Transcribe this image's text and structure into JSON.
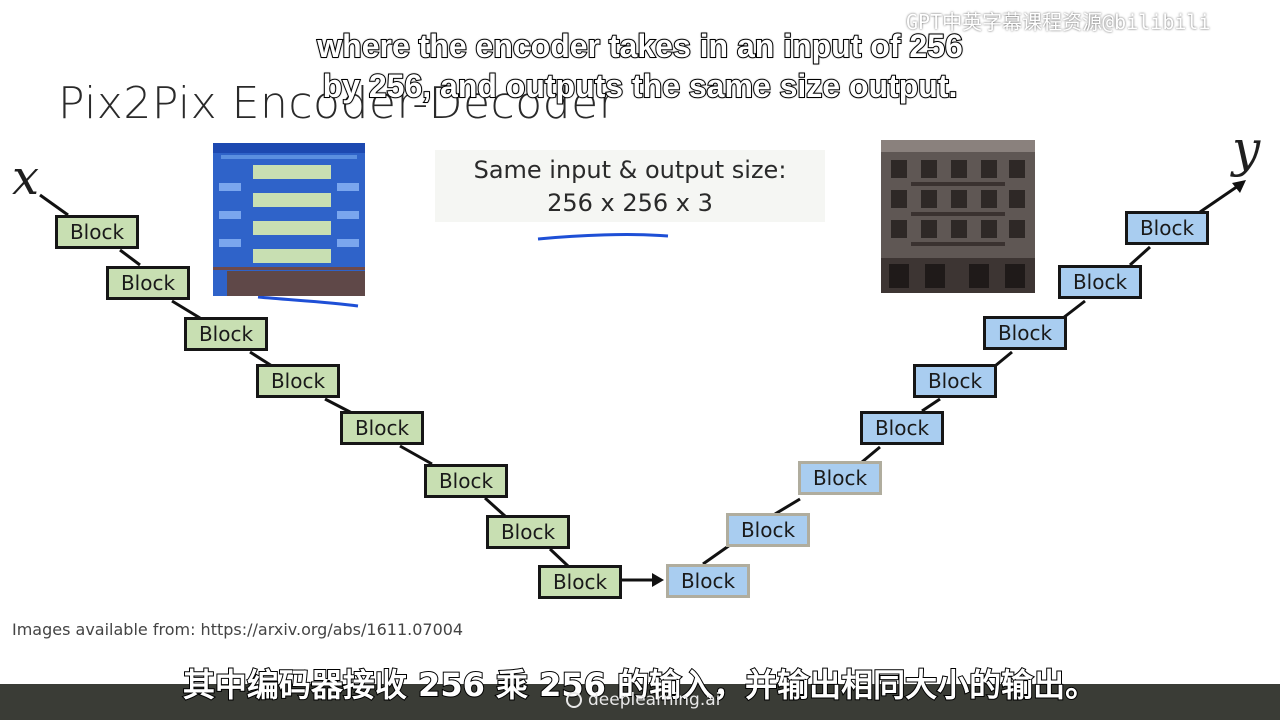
{
  "slide": {
    "title": "Pix2Pix Encoder-Decoder",
    "x_label": "x",
    "y_label": "y",
    "note_line1": "Same input & output size:",
    "note_line2": "256 x 256 x 3",
    "source": "Images available from: https://arxiv.org/abs/1611.07004"
  },
  "encoder_blocks": [
    "Block",
    "Block",
    "Block",
    "Block",
    "Block",
    "Block",
    "Block",
    "Block"
  ],
  "decoder_blocks": [
    "Block",
    "Block",
    "Block",
    "Block",
    "Block",
    "Block",
    "Block",
    "Block"
  ],
  "subtitles": {
    "en_line1": "where the encoder takes in an input of 256",
    "en_line2": "by 256, and outputs the same size output.",
    "zh": "其中编码器接收 256 乘 256 的输入，并输出相同大小的输出。"
  },
  "watermark": "GPT中英字幕课程资源@bilibili",
  "branding": {
    "logo_text": "deeplearning.ai"
  },
  "colors": {
    "encoder": "#c8dfb2",
    "decoder": "#a9cdf0",
    "ink": "#1e4fd6"
  }
}
